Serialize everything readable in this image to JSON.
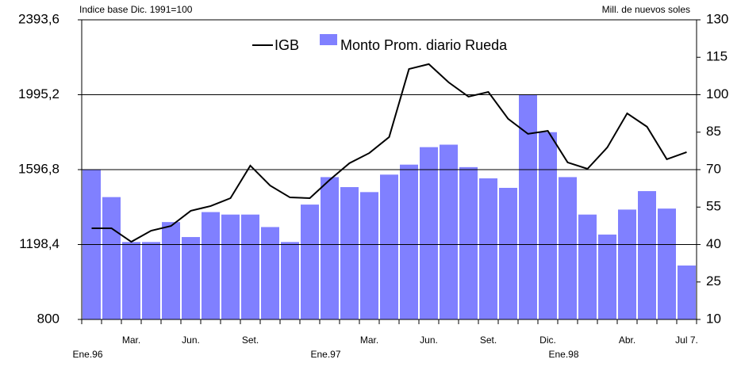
{
  "chart_data": {
    "type": "bar-line",
    "left_axis_label": "Indice base Dic. 1991=100",
    "right_axis_label": "Mill. de nuevos soles",
    "categories": [
      "Ene.96",
      null,
      "Mar.",
      null,
      null,
      "Jun.",
      null,
      null,
      "Set.",
      null,
      null,
      null,
      "Ene.97",
      null,
      "Mar.",
      null,
      null,
      "Jun.",
      null,
      null,
      "Set.",
      null,
      null,
      "Dic.",
      "Ene.98",
      null,
      null,
      "Abr.",
      null,
      null,
      "Jul 7."
    ],
    "series": [
      {
        "name": "IGB",
        "kind": "line",
        "color": "#000000",
        "axis": "y",
        "values": [
          1285,
          1285,
          1213,
          1272,
          1297,
          1378,
          1403,
          1445,
          1618,
          1512,
          1449,
          1445,
          1542,
          1631,
          1685,
          1770,
          2132,
          2158,
          2061,
          1985,
          2010,
          1867,
          1787,
          1803,
          1635,
          1601,
          1715,
          1896,
          1825,
          1652,
          1690
        ]
      },
      {
        "name": "Monto Prom. diario Rueda",
        "kind": "bar",
        "color": "#8080ff",
        "axis": "y2",
        "values": [
          70,
          59,
          41,
          41,
          49,
          43,
          53,
          52,
          52,
          47,
          41,
          56,
          67,
          63,
          61,
          68,
          72,
          79,
          80,
          71,
          66.5,
          62.7,
          100,
          85,
          67,
          52,
          44,
          54,
          61.4,
          54.4,
          31.6
        ]
      }
    ],
    "ylim": [
      800,
      2393.6
    ],
    "yticks": [
      800,
      {
        "value": 1198.4,
        "label": "1198,4"
      },
      {
        "value": 1596.8,
        "label": "1596,8"
      },
      {
        "value": 1995.2,
        "label": "1995,2"
      },
      {
        "value": 2393.6,
        "label": "2393,6"
      }
    ],
    "y2lim": [
      10,
      130
    ],
    "y2ticks": [
      10,
      25,
      40,
      55,
      70,
      85,
      100,
      115,
      130
    ],
    "grid": true
  }
}
